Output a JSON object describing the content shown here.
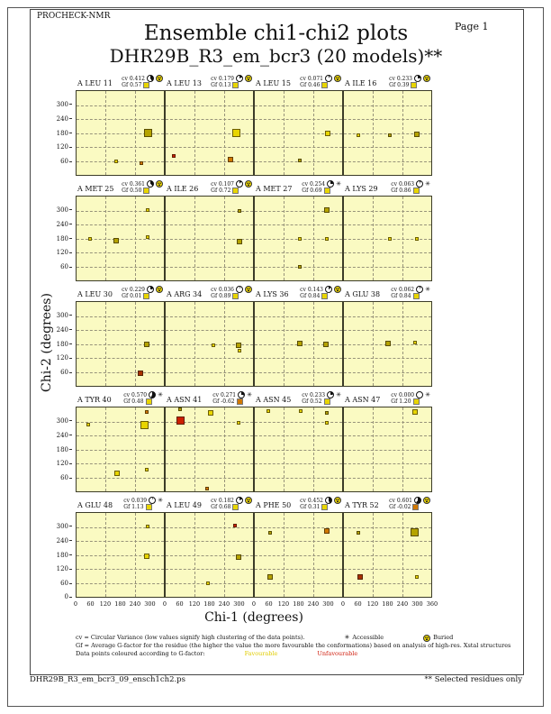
{
  "page": {
    "app_name": "PROCHECK-NMR",
    "page_label": "Page  1",
    "title_line1": "Ensemble chi1-chi2 plots",
    "title_line2": "DHR29B_R3_em_bcr3 (20 models)**",
    "footer_filename": "DHR29B_R3_em_bcr3_09_ensch1ch2.ps",
    "footer_note": "** Selected residues only"
  },
  "axes": {
    "x_label": "Chi-1 (degrees)",
    "y_label": "Chi-2 (degrees)",
    "x_tick_values": [
      0,
      60,
      120,
      180,
      240,
      300
    ],
    "x_final_tick": 360,
    "y_tick_values": [
      300,
      240,
      180,
      120,
      60
    ],
    "y_origin_label": "0"
  },
  "legend": {
    "line1": "cv = Circular Variance (low values signify high clustering of the data points).",
    "accessible_label": "Accessible",
    "buried_label": "Buried",
    "line2": "Gf = Average G-factor for the residue (the higher the value the more favourable the conformations)  based on analysis of high-res. Xstal structures",
    "line3": "Data points coloured according to G-factor:",
    "favourable_label": "Favourable",
    "unfavourable_label": "Unfavourable"
  },
  "colors": {
    "plot_bg": "#FAFAC2",
    "favourable_yellow": "#E8D500",
    "olive": "#B5A300",
    "unfavourable_orange": "#D07800",
    "unfavourable_red": "#CC1F00",
    "dark_red": "#A93000",
    "plot_border": "#3C3C28"
  },
  "chart_data": {
    "type": "scatter",
    "x_range": [
      0,
      360
    ],
    "y_range": [
      0,
      360
    ],
    "grid_v": [
      120,
      240
    ],
    "grid_h": [
      60,
      120,
      180,
      240,
      300
    ],
    "cv_label_prefix": "cv",
    "gf_label_prefix": "Gf",
    "plots": [
      {
        "residue": "A LEU 11",
        "cv": "0.412",
        "gf": "0.57",
        "access": "buried",
        "gf_sq": "y",
        "points": [
          [
            165,
            60,
            "y",
            "s"
          ],
          [
            268,
            52,
            "or",
            "s"
          ],
          [
            296,
            180,
            "o",
            "l"
          ]
        ]
      },
      {
        "residue": "A LEU 13",
        "cv": "0.179",
        "gf": "0.13",
        "access": "buried",
        "gf_sq": "y",
        "points": [
          [
            35,
            80,
            "r",
            "s"
          ],
          [
            268,
            65,
            "or",
            "m"
          ],
          [
            290,
            180,
            "y",
            "l"
          ]
        ]
      },
      {
        "residue": "A LEU 15",
        "cv": "0.071",
        "gf": "0.46",
        "access": "buried",
        "gf_sq": "y",
        "points": [
          [
            187,
            62,
            "o",
            "s"
          ],
          [
            300,
            178,
            "y",
            "m"
          ]
        ]
      },
      {
        "residue": "A ILE 16",
        "cv": "0.233",
        "gf": "0.39",
        "access": "buried",
        "gf_sq": "y",
        "points": [
          [
            60,
            172,
            "y",
            "s"
          ],
          [
            190,
            170,
            "o",
            "s"
          ],
          [
            300,
            174,
            "o",
            "m"
          ]
        ]
      },
      {
        "residue": "A MET 25",
        "cv": "0.361",
        "gf": "0.50",
        "access": "buried",
        "gf_sq": "y",
        "points": [
          [
            55,
            180,
            "y",
            "s"
          ],
          [
            162,
            172,
            "o",
            "m"
          ],
          [
            293,
            186,
            "y",
            "s"
          ],
          [
            293,
            300,
            "y",
            "s"
          ]
        ]
      },
      {
        "residue": "A ILE 26",
        "cv": "0.107",
        "gf": "0.72",
        "access": "buried",
        "gf_sq": "y",
        "points": [
          [
            305,
            298,
            "o",
            "s"
          ],
          [
            305,
            168,
            "o",
            "m"
          ]
        ]
      },
      {
        "residue": "A MET 27",
        "cv": "0.254",
        "gf": "0.69",
        "access": "accessible",
        "gf_sq": "y",
        "points": [
          [
            298,
            302,
            "o",
            "m"
          ],
          [
            185,
            180,
            "y",
            "s"
          ],
          [
            297,
            180,
            "y",
            "s"
          ],
          [
            185,
            58,
            "o",
            "s"
          ]
        ]
      },
      {
        "residue": "A LYS 29",
        "cv": "0.063",
        "gf": "0.86",
        "access": "accessible",
        "gf_sq": "y",
        "points": [
          [
            188,
            180,
            "y",
            "s"
          ],
          [
            300,
            180,
            "y",
            "s"
          ]
        ]
      },
      {
        "residue": "A LEU 30",
        "cv": "0.229",
        "gf": "0.01",
        "access": "buried",
        "gf_sq": "y",
        "points": [
          [
            289,
            180,
            "o",
            "m"
          ],
          [
            262,
            55,
            "dr",
            "m"
          ]
        ]
      },
      {
        "residue": "A ARG 34",
        "cv": "0.036",
        "gf": "0.89",
        "access": "buried",
        "gf_sq": "y",
        "points": [
          [
            195,
            176,
            "y",
            "s"
          ],
          [
            300,
            173,
            "o",
            "m"
          ],
          [
            306,
            152,
            "y",
            "s"
          ]
        ]
      },
      {
        "residue": "A LYS 36",
        "cv": "0.143",
        "gf": "0.84",
        "access": "buried",
        "gf_sq": "y",
        "points": [
          [
            187,
            183,
            "o",
            "m"
          ],
          [
            292,
            180,
            "o",
            "m"
          ]
        ]
      },
      {
        "residue": "A GLU 38",
        "cv": "0.062",
        "gf": "0.84",
        "access": "accessible",
        "gf_sq": "y",
        "points": [
          [
            182,
            181,
            "o",
            "m"
          ],
          [
            295,
            185,
            "y",
            "s"
          ]
        ]
      },
      {
        "residue": "A TYR 40",
        "cv": "0.570",
        "gf": "0.48",
        "access": "accessible",
        "gf_sq": "y",
        "points": [
          [
            289,
            342,
            "or",
            "s"
          ],
          [
            281,
            284,
            "y",
            "l"
          ],
          [
            48,
            288,
            "y",
            "s"
          ],
          [
            168,
            77,
            "y",
            "m"
          ],
          [
            290,
            92,
            "y",
            "s"
          ]
        ]
      },
      {
        "residue": "A ASN 41",
        "cv": "0.271",
        "gf": "-0.62",
        "access": "accessible",
        "gf_sq": "or",
        "points": [
          [
            60,
            352,
            "o",
            "s"
          ],
          [
            62,
            305,
            "r",
            "l"
          ],
          [
            184,
            338,
            "y",
            "m"
          ],
          [
            300,
            295,
            "y",
            "s"
          ],
          [
            172,
            12,
            "or",
            "s"
          ]
        ]
      },
      {
        "residue": "A ASN 45",
        "cv": "0.233",
        "gf": "0.52",
        "access": "accessible",
        "gf_sq": "y",
        "points": [
          [
            57,
            343,
            "y",
            "s"
          ],
          [
            188,
            343,
            "y",
            "s"
          ],
          [
            296,
            336,
            "o",
            "s"
          ],
          [
            298,
            296,
            "y",
            "s"
          ]
        ]
      },
      {
        "residue": "A ASN 47",
        "cv": "0.000",
        "gf": "1.20",
        "access": "accessible",
        "gf_sq": "y",
        "points": [
          [
            292,
            340,
            "y",
            "m"
          ]
        ]
      },
      {
        "residue": "A GLU 48",
        "cv": "0.039",
        "gf": "1.13",
        "access": "accessible",
        "gf_sq": "y",
        "points": [
          [
            295,
            300,
            "y",
            "s"
          ],
          [
            288,
            176,
            "y",
            "m"
          ]
        ]
      },
      {
        "residue": "A LEU 49",
        "cv": "0.182",
        "gf": "0.68",
        "access": "buried",
        "gf_sq": "y",
        "points": [
          [
            287,
            304,
            "r",
            "s"
          ],
          [
            300,
            172,
            "o",
            "m"
          ],
          [
            176,
            60,
            "y",
            "s"
          ]
        ]
      },
      {
        "residue": "A PHE 50",
        "cv": "0.452",
        "gf": "0.31",
        "access": "buried",
        "gf_sq": "y",
        "points": [
          [
            64,
            276,
            "o",
            "s"
          ],
          [
            297,
            281,
            "or",
            "m"
          ],
          [
            64,
            85,
            "o",
            "m"
          ]
        ]
      },
      {
        "residue": "A TYR 52",
        "cv": "0.601",
        "gf": "-0.02",
        "access": "buried",
        "gf_sq": "or",
        "points": [
          [
            61,
            276,
            "o",
            "s"
          ],
          [
            293,
            278,
            "o",
            "l"
          ],
          [
            65,
            85,
            "dr",
            "m"
          ],
          [
            299,
            85,
            "y",
            "s"
          ]
        ]
      }
    ]
  }
}
